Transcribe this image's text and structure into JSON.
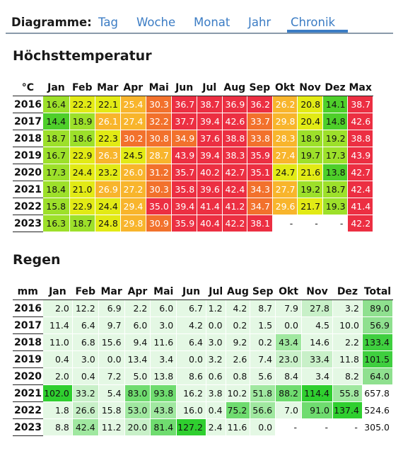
{
  "nav": {
    "label": "Diagramme:",
    "tabs": [
      {
        "label": "Tag",
        "active": false
      },
      {
        "label": "Woche",
        "active": false
      },
      {
        "label": "Monat",
        "active": false
      },
      {
        "label": "Jahr",
        "active": false
      },
      {
        "label": "Chronik",
        "active": true
      }
    ]
  },
  "temperature": {
    "title": "Höchsttemperatur",
    "unit": "°C",
    "columns": [
      "Jan",
      "Feb",
      "Mar",
      "Apr",
      "Mai",
      "Jun",
      "Jul",
      "Aug",
      "Sep",
      "Okt",
      "Nov",
      "Dez",
      "Max"
    ],
    "rows": [
      {
        "year": "2016",
        "values": [
          "16.4",
          "22.2",
          "22.1",
          "25.4",
          "30.3",
          "36.7",
          "38.7",
          "36.9",
          "36.2",
          "26.2",
          "20.8",
          "14.1",
          "38.7"
        ]
      },
      {
        "year": "2017",
        "values": [
          "14.4",
          "18.9",
          "26.1",
          "27.4",
          "32.2",
          "37.7",
          "39.4",
          "42.6",
          "33.7",
          "29.8",
          "20.4",
          "14.8",
          "42.6"
        ]
      },
      {
        "year": "2018",
        "values": [
          "18.7",
          "18.6",
          "22.3",
          "30.2",
          "30.8",
          "34.9",
          "37.6",
          "38.8",
          "33.8",
          "28.3",
          "18.9",
          "19.2",
          "38.8"
        ]
      },
      {
        "year": "2019",
        "values": [
          "16.7",
          "22.9",
          "26.3",
          "24.5",
          "28.7",
          "43.9",
          "39.4",
          "38.3",
          "35.9",
          "27.4",
          "19.7",
          "17.3",
          "43.9"
        ]
      },
      {
        "year": "2020",
        "values": [
          "17.3",
          "24.4",
          "23.2",
          "26.0",
          "31.2",
          "35.7",
          "40.2",
          "42.7",
          "35.1",
          "24.7",
          "21.6",
          "13.8",
          "42.7"
        ]
      },
      {
        "year": "2021",
        "values": [
          "18.4",
          "21.0",
          "26.9",
          "27.2",
          "30.3",
          "35.8",
          "39.6",
          "42.4",
          "34.3",
          "27.7",
          "19.2",
          "18.7",
          "42.4"
        ]
      },
      {
        "year": "2022",
        "values": [
          "15.8",
          "22.9",
          "24.4",
          "29.4",
          "35.0",
          "39.4",
          "41.4",
          "41.2",
          "34.7",
          "29.6",
          "21.7",
          "19.3",
          "41.4"
        ]
      },
      {
        "year": "2023",
        "values": [
          "16.3",
          "18.7",
          "24.8",
          "29.8",
          "30.9",
          "35.9",
          "40.4",
          "42.2",
          "38.1",
          "-",
          "-",
          "-",
          "42.2"
        ]
      }
    ]
  },
  "rain": {
    "title": "Regen",
    "unit": "mm",
    "columns": [
      "Jan",
      "Feb",
      "Mar",
      "Apr",
      "Mai",
      "Jun",
      "Jul",
      "Aug",
      "Sep",
      "Okt",
      "Nov",
      "Dez",
      "Total"
    ],
    "rows": [
      {
        "year": "2016",
        "values": [
          "2.0",
          "12.2",
          "6.9",
          "2.2",
          "6.0",
          "6.7",
          "1.2",
          "4.2",
          "8.7",
          "7.9",
          "27.8",
          "3.2",
          "89.0"
        ]
      },
      {
        "year": "2017",
        "values": [
          "11.4",
          "6.4",
          "9.7",
          "6.0",
          "3.0",
          "4.2",
          "0.0",
          "0.2",
          "1.5",
          "0.0",
          "4.5",
          "10.0",
          "56.9"
        ]
      },
      {
        "year": "2018",
        "values": [
          "11.0",
          "6.8",
          "15.6",
          "9.4",
          "11.6",
          "6.4",
          "3.0",
          "9.2",
          "0.2",
          "43.4",
          "14.6",
          "2.2",
          "133.4"
        ]
      },
      {
        "year": "2019",
        "values": [
          "0.4",
          "3.0",
          "0.0",
          "13.4",
          "3.4",
          "0.0",
          "3.2",
          "2.6",
          "7.4",
          "23.0",
          "33.4",
          "11.8",
          "101.5"
        ]
      },
      {
        "year": "2020",
        "values": [
          "2.0",
          "0.4",
          "7.2",
          "5.0",
          "13.8",
          "8.6",
          "0.6",
          "0.8",
          "5.6",
          "8.4",
          "3.4",
          "8.2",
          "64.0"
        ]
      },
      {
        "year": "2021",
        "values": [
          "102.0",
          "33.2",
          "5.4",
          "83.0",
          "93.8",
          "16.2",
          "3.8",
          "10.2",
          "51.8",
          "88.2",
          "114.4",
          "55.8",
          "657.8"
        ]
      },
      {
        "year": "2022",
        "values": [
          "1.8",
          "26.6",
          "15.8",
          "53.0",
          "43.8",
          "16.0",
          "0.4",
          "75.2",
          "56.6",
          "7.0",
          "91.0",
          "137.4",
          "524.6"
        ]
      },
      {
        "year": "2023",
        "values": [
          "8.8",
          "42.4",
          "11.2",
          "20.0",
          "81.4",
          "127.2",
          "2.4",
          "11.6",
          "0.0",
          "-",
          "-",
          "-",
          "305.0"
        ]
      }
    ]
  }
}
